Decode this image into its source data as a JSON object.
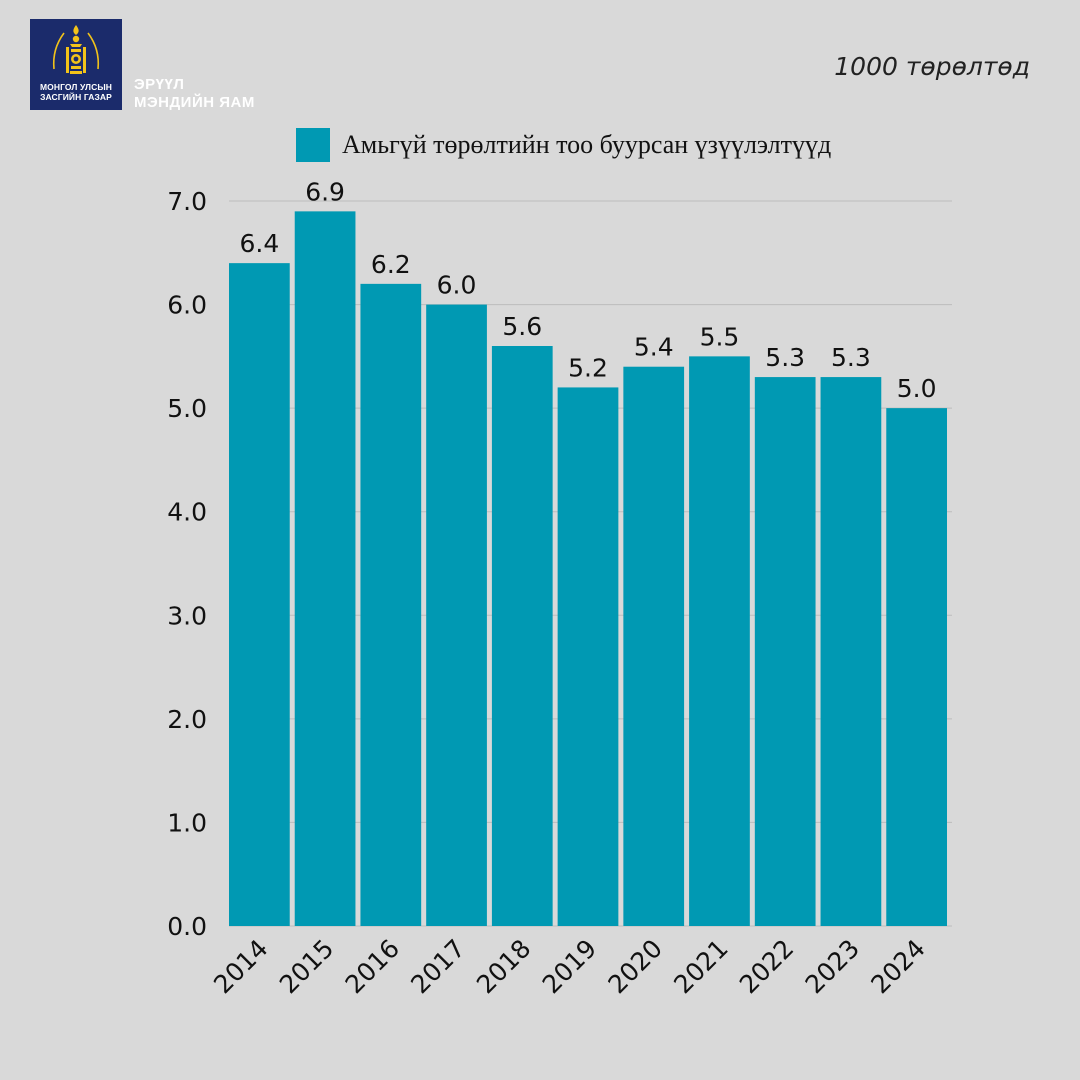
{
  "header": {
    "emblem_line1": "МОНГОЛ УЛСЫН",
    "emblem_line2": "ЗАСГИЙН ГАЗАР",
    "ministry_line1": "ЭРҮҮЛ",
    "ministry_line2": "МЭНДИЙН ЯАМ",
    "unit_note": "1000 төрөлтөд"
  },
  "colors": {
    "background": "#d9d9d9",
    "bar": "#0099b3",
    "logo_bg": "#1b2b6b",
    "emblem_gold": "#f2c31a",
    "grid": "#bdbdbd"
  },
  "chart_data": {
    "type": "bar",
    "categories": [
      "2014",
      "2015",
      "2016",
      "2017",
      "2018",
      "2019",
      "2020",
      "2021",
      "2022",
      "2023",
      "2024"
    ],
    "series": [
      {
        "name": "Амьгүй төрөлтийн тоо буурсан үзүүлэлтүүд",
        "values": [
          6.4,
          6.9,
          6.2,
          6.0,
          5.6,
          5.2,
          5.4,
          5.5,
          5.3,
          5.3,
          5.0
        ]
      }
    ],
    "value_labels": [
      "6.4",
      "6.9",
      "6.2",
      "6.0",
      "5.6",
      "5.2",
      "5.4",
      "5.5",
      "5.3",
      "5.3",
      "5.0"
    ],
    "y_ticks": [
      "0.0",
      "1.0",
      "2.0",
      "3.0",
      "4.0",
      "5.0",
      "6.0",
      "7.0"
    ],
    "ylim": [
      0,
      7
    ],
    "grid": true,
    "legend_position": "top",
    "title": "",
    "xlabel": "",
    "ylabel": ""
  }
}
